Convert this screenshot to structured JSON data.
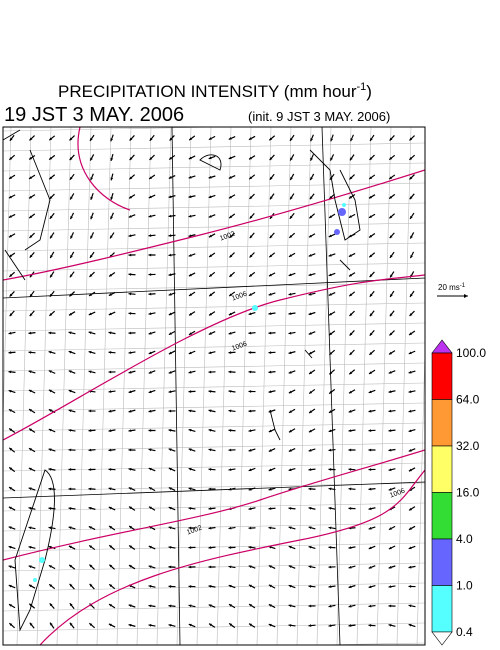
{
  "header": {
    "title": "PRECIPITATION INTENSITY (mm hour",
    "title_sup": "-1",
    "title_end": ")",
    "valid_time": "19 JST 3 MAY. 2006",
    "init_time": "(init. 9 JST 3 MAY. 2006)"
  },
  "scale_arrow": {
    "label": "20 ms",
    "label_sup": "-1"
  },
  "colorbar": {
    "levels": [
      {
        "label": "100.0",
        "color": "#ff0000"
      },
      {
        "label": "64.0",
        "color": "#ff9933"
      },
      {
        "label": "32.0",
        "color": "#ffff66"
      },
      {
        "label": "16.0",
        "color": "#33dd33"
      },
      {
        "label": "4.0",
        "color": "#6666ff"
      },
      {
        "label": "1.0",
        "color": "#55ffff"
      },
      {
        "label": "0.4",
        "color": "#ffffff"
      }
    ],
    "over_color": "#bb33ee"
  },
  "isobar_labels": [
    "1002",
    "1006",
    "1006",
    "1002",
    "1006"
  ]
}
